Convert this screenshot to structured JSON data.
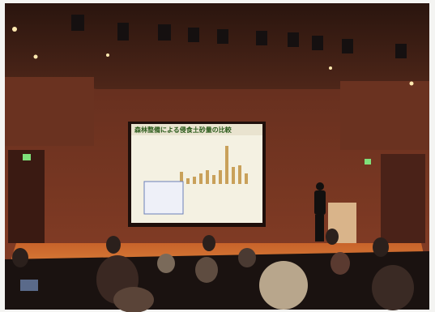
{
  "slide": {
    "title": "森林整備による侵食土砂量の比較"
  }
}
